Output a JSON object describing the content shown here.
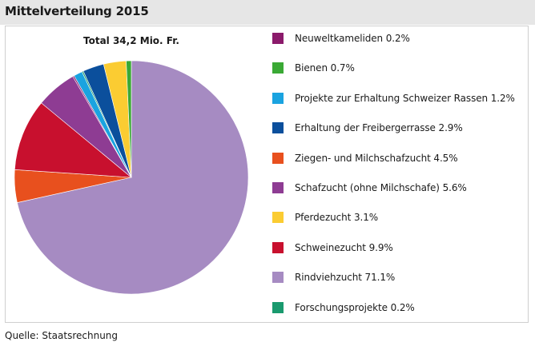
{
  "header": {
    "title": "Mittelverteilung 2015"
  },
  "footer": {
    "source": "Quelle: Staatsrechnung"
  },
  "chart_data": {
    "type": "pie",
    "title": "Mittelverteilung 2015",
    "subtitle": "Total 34,2 Mio. Fr.",
    "unit": "%",
    "legend_position": "right",
    "slices": [
      {
        "label": "Neuweltkameliden 0.2%",
        "value": 0.2,
        "color": "#8b1a6b"
      },
      {
        "label": "Bienen 0.7%",
        "value": 0.7,
        "color": "#3aa935"
      },
      {
        "label": "Projekte zur Erhaltung Schweizer Rassen 1.2%",
        "value": 1.2,
        "color": "#1aa3e0"
      },
      {
        "label": "Erhaltung der Freibergerrasse 2.9%",
        "value": 2.9,
        "color": "#0b4f9c"
      },
      {
        "label": "Ziegen- und Milchschafzucht 4.5%",
        "value": 4.5,
        "color": "#e8501e"
      },
      {
        "label": "Schafzucht (ohne Milchschafe) 5.6%",
        "value": 5.6,
        "color": "#8e3c93"
      },
      {
        "label": "Pferdezucht 3.1%",
        "value": 3.1,
        "color": "#fbcc32"
      },
      {
        "label": "Schweinezucht 9.9%",
        "value": 9.9,
        "color": "#c8102e"
      },
      {
        "label": "Rindviehzucht 71.1%",
        "value": 71.1,
        "color": "#a68bc2"
      },
      {
        "label": "Forschungsprojekte 0.2%",
        "value": 0.2,
        "color": "#1a9a6e"
      }
    ],
    "pie_order": [
      "Rindviehzucht 71.1%",
      "Ziegen- und Milchschafzucht 4.5%",
      "Schweinezucht 9.9%",
      "Schafzucht (ohne Milchschafe) 5.6%",
      "Neuweltkameliden 0.2%",
      "Projekte zur Erhaltung Schweizer Rassen 1.2%",
      "Forschungsprojekte 0.2%",
      "Erhaltung der Freibergerrasse 2.9%",
      "Pferdezucht 3.1%",
      "Bienen 0.7%"
    ]
  }
}
